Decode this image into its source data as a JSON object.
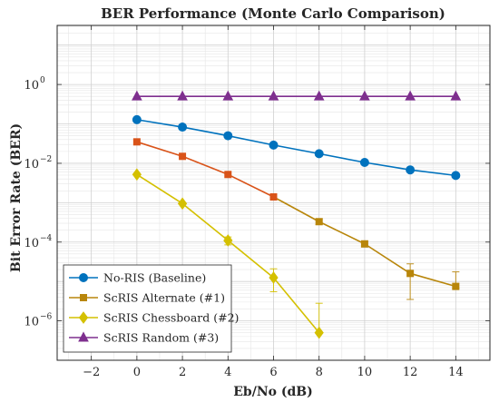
{
  "chart_data": {
    "type": "line",
    "title": "BER Performance (Monte Carlo Comparison)",
    "xlabel": "Eb/No (dB)",
    "ylabel": "Bit Error Rate (BER)",
    "xlim": [
      -3.5,
      15.5
    ],
    "ylim_log10": [
      -7,
      1.5
    ],
    "yscale": "log",
    "x_ticks": [
      -2,
      0,
      2,
      4,
      6,
      8,
      10,
      12,
      14
    ],
    "y_ticks": [
      {
        "exp": 0,
        "label": "10",
        "sup": "0"
      },
      {
        "exp": -2,
        "label": "10",
        "sup": "-2"
      },
      {
        "exp": -4,
        "label": "10",
        "sup": "-4"
      },
      {
        "exp": -6,
        "label": "10",
        "sup": "-6"
      }
    ],
    "grid": true,
    "legend_position": "bottom-left",
    "series": [
      {
        "name": "No-RIS (Baseline)",
        "color": "#0072BD",
        "marker": "circle",
        "x": [
          0,
          2,
          4,
          6,
          8,
          10,
          12,
          14
        ],
        "y": [
          0.128,
          0.083,
          0.05,
          0.029,
          0.0175,
          0.0105,
          0.0068,
          0.0049
        ]
      },
      {
        "name": "ScRIS Alternate (#1)",
        "color": "#D95319",
        "color_late": "#B8860B",
        "marker": "square",
        "x": [
          0,
          2,
          4,
          6,
          8,
          10,
          12,
          14
        ],
        "y": [
          0.035,
          0.015,
          0.0052,
          0.0014,
          0.00033,
          9e-05,
          1.6e-05,
          7.5e-06
        ],
        "err_low": [
          null,
          null,
          null,
          null,
          0.00028,
          7.5e-05,
          3.5e-06,
          6.8e-06
        ],
        "err_high": [
          null,
          null,
          null,
          null,
          0.00039,
          0.000105,
          2.8e-05,
          1.75e-05
        ]
      },
      {
        "name": "ScRIS Chessboard (#2)",
        "color": "#D4C000",
        "marker": "diamond",
        "x": [
          0,
          2,
          4,
          6,
          8
        ],
        "y": [
          0.0052,
          0.00095,
          0.00011,
          1.25e-05,
          5e-07
        ],
        "err_low": [
          null,
          null,
          8.5e-05,
          5.5e-06,
          null
        ],
        "err_high": [
          null,
          null,
          0.000135,
          2.1e-05,
          2.8e-06
        ]
      },
      {
        "name": "ScRIS Random (#3)",
        "color": "#7E2F8E",
        "marker": "triangle",
        "x": [
          0,
          2,
          4,
          6,
          8,
          10,
          12,
          14
        ],
        "y": [
          0.5,
          0.5,
          0.5,
          0.5,
          0.5,
          0.5,
          0.5,
          0.5
        ]
      }
    ]
  }
}
